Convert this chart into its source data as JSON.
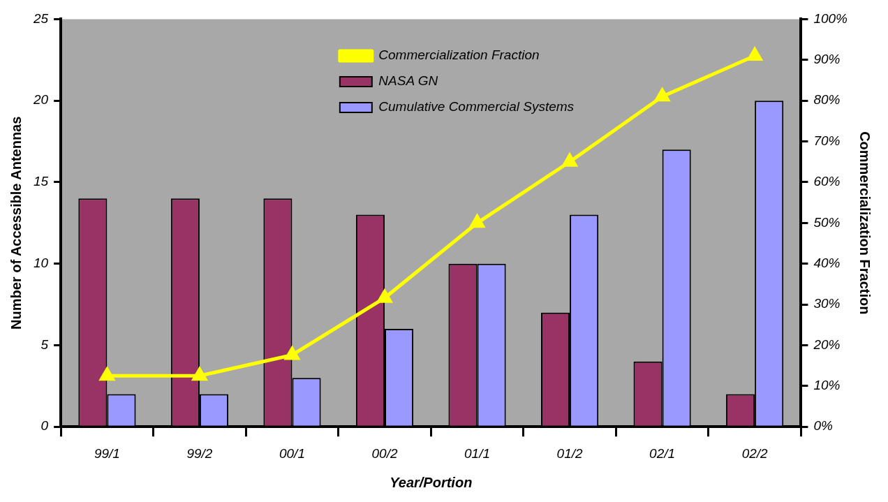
{
  "chart_data": {
    "type": "bar",
    "xlabel": "Year/Portion",
    "ylabel": "Number of Accessible Antennas",
    "y2label": "Commercialization Fraction",
    "categories": [
      "99/1",
      "99/2",
      "00/1",
      "00/2",
      "01/1",
      "01/2",
      "02/1",
      "02/2"
    ],
    "series": [
      {
        "name": "NASA GN",
        "color": "#993366",
        "values": [
          14,
          14,
          14,
          13,
          10,
          7,
          4,
          2
        ]
      },
      {
        "name": "Cumulative Commercial Systems",
        "color": "#9999ff",
        "values": [
          2,
          2,
          3,
          6,
          10,
          13,
          17,
          20
        ]
      },
      {
        "name": "Commercialization Fraction",
        "type": "line",
        "axis": "y2",
        "color": "#ffff00",
        "marker": "triangle",
        "values": [
          12.5,
          12.5,
          17.6,
          31.6,
          50,
          65,
          81,
          91
        ]
      }
    ],
    "ylim": [
      0,
      25
    ],
    "yticks": [
      0,
      5,
      10,
      15,
      20,
      25
    ],
    "y2lim": [
      0,
      100
    ],
    "y2ticks": [
      {
        "value": 0,
        "label": "0%"
      },
      {
        "value": 10,
        "label": "10%"
      },
      {
        "value": 20,
        "label": "20%"
      },
      {
        "value": 30,
        "label": "30%"
      },
      {
        "value": 40,
        "label": "40%"
      },
      {
        "value": 50,
        "label": "50%"
      },
      {
        "value": 60,
        "label": "60%"
      },
      {
        "value": 70,
        "label": "70%"
      },
      {
        "value": 80,
        "label": "80%"
      },
      {
        "value": 90,
        "label": "90%"
      },
      {
        "value": 100,
        "label": "100%"
      }
    ],
    "legend": "top",
    "grid": false
  }
}
